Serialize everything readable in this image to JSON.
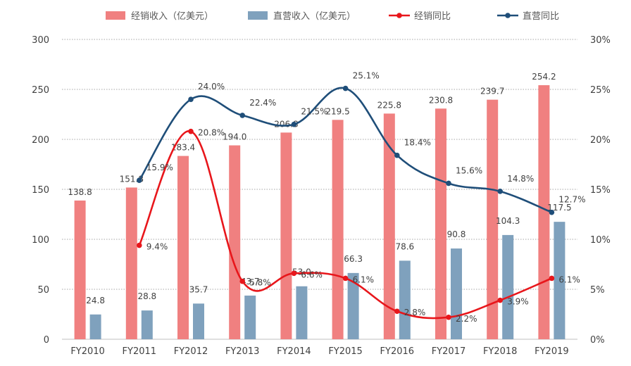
{
  "chart_data": {
    "type": "bar",
    "categories": [
      "FY2010",
      "FY2011",
      "FY2012",
      "FY2013",
      "FY2014",
      "FY2015",
      "FY2016",
      "FY2017",
      "FY2018",
      "FY2019"
    ],
    "series": [
      {
        "name": "经销收入（亿美元）",
        "type": "bar",
        "axis": "left",
        "color": "#F08080",
        "values": [
          138.8,
          151.8,
          183.4,
          194.0,
          206.8,
          219.5,
          225.8,
          230.8,
          239.7,
          254.2
        ],
        "labels": [
          "138.8",
          "151.8",
          "183.4",
          "194.0",
          "206.8",
          "219.5",
          "225.8",
          "230.8",
          "239.7",
          "254.2"
        ]
      },
      {
        "name": "直营收入（亿美元）",
        "type": "bar",
        "axis": "left",
        "color": "#7FA1BD",
        "values": [
          24.8,
          28.8,
          35.7,
          43.7,
          53.0,
          66.3,
          78.6,
          90.8,
          104.3,
          117.5
        ],
        "labels": [
          "24.8",
          "28.8",
          "35.7",
          "43.7",
          "53.0",
          "66.3",
          "78.6",
          "90.8",
          "104.3",
          "117.5"
        ]
      },
      {
        "name": "经销同比",
        "type": "line",
        "axis": "right",
        "color": "#E8161B",
        "values": [
          null,
          9.4,
          20.8,
          5.8,
          6.6,
          6.1,
          2.8,
          2.2,
          3.9,
          6.1
        ],
        "labels": [
          "",
          "9.4%",
          "20.8%",
          "5.8%",
          "6.6%",
          "6.1%",
          "2.8%",
          "2.2%",
          "3.9%",
          "6.1%"
        ]
      },
      {
        "name": "直营同比",
        "type": "line",
        "axis": "right",
        "color": "#1F4E79",
        "values": [
          null,
          15.9,
          24.0,
          22.4,
          21.5,
          25.1,
          18.4,
          15.6,
          14.8,
          12.7
        ],
        "labels": [
          "",
          "15.9%",
          "24.0%",
          "22.4%",
          "21.5%",
          "25.1%",
          "18.4%",
          "15.6%",
          "14.8%",
          "12.7%"
        ]
      }
    ],
    "ylim": [
      0,
      300
    ],
    "y_ticks": [
      "0",
      "50",
      "100",
      "150",
      "200",
      "250",
      "300"
    ],
    "y2lim": [
      0,
      30
    ],
    "y2_ticks": [
      "0%",
      "5%",
      "10%",
      "15%",
      "20%",
      "25%",
      "30%"
    ],
    "grid": true,
    "legend_position": "top"
  }
}
